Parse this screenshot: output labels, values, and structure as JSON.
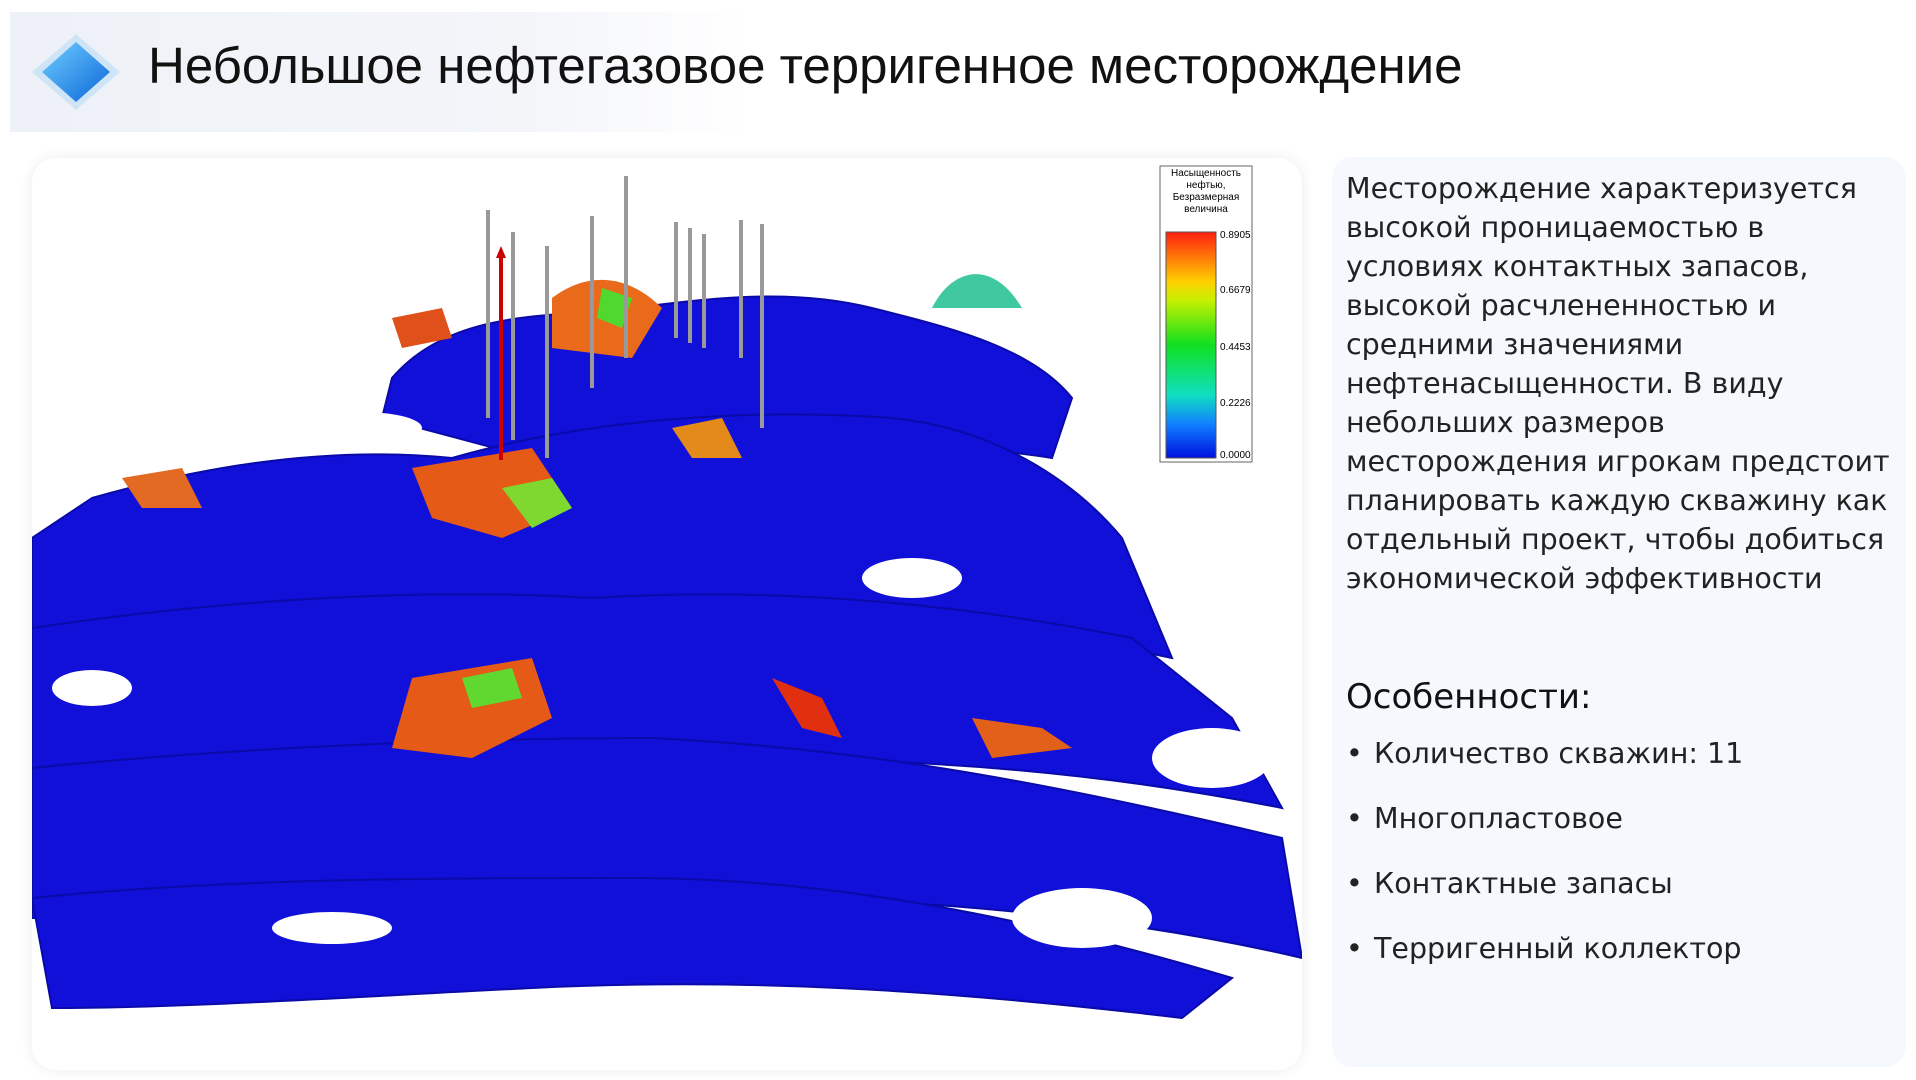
{
  "header": {
    "title": "Небольшое нефтегазовое терригенное месторождение"
  },
  "figure": {
    "legend": {
      "title": "Насыщенность нефтью, Безразмерная величина",
      "ticks": [
        "0.8905",
        "0.6679",
        "0.4453",
        "0.2226",
        "0.0000"
      ]
    }
  },
  "description": {
    "text": "Месторождение характеризуется высокой проницаемостью в условиях контактных запасов, высокой расчлененностью и средними значениями нефтенасыщенности. В виду небольших размеров месторождения игрокам предстоит планировать каждую скважину как отдельный проект, чтобы добиться экономической эффективности",
    "features_heading": "Особенности:",
    "features": [
      "Количество скважин: 11",
      "Многопластовое",
      "Контактные запасы",
      "Терригенный коллектор"
    ]
  }
}
